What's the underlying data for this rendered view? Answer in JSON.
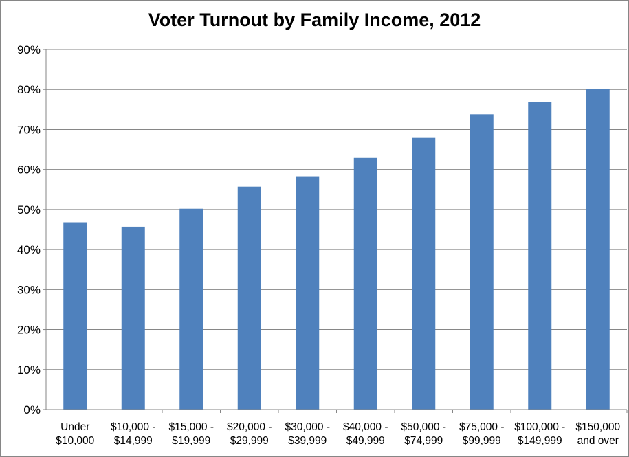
{
  "chart_data": {
    "type": "bar",
    "title": "Voter Turnout by Family Income, 2012",
    "xlabel": "",
    "ylabel": "",
    "categories": [
      [
        "Under",
        "$10,000"
      ],
      [
        "$10,000 -",
        "$14,999"
      ],
      [
        "$15,000 -",
        "$19,999"
      ],
      [
        "$20,000 -",
        "$29,999"
      ],
      [
        "$30,000 -",
        "$39,999"
      ],
      [
        "$40,000 -",
        "$49,999"
      ],
      [
        "$50,000 -",
        "$74,999"
      ],
      [
        "$75,000 -",
        "$99,999"
      ],
      [
        "$100,000 -",
        "$149,999"
      ],
      [
        "$150,000",
        "and over"
      ]
    ],
    "values": [
      46.8,
      45.7,
      50.2,
      55.7,
      58.3,
      62.9,
      67.9,
      73.8,
      76.9,
      80.2
    ],
    "ylim": [
      0,
      90
    ],
    "yticks": [
      "0%",
      "10%",
      "20%",
      "30%",
      "40%",
      "50%",
      "60%",
      "70%",
      "80%",
      "90%"
    ],
    "grid": true,
    "legend": "none",
    "colors": {
      "bar": "#4F81BD",
      "grid": "#868686"
    }
  }
}
